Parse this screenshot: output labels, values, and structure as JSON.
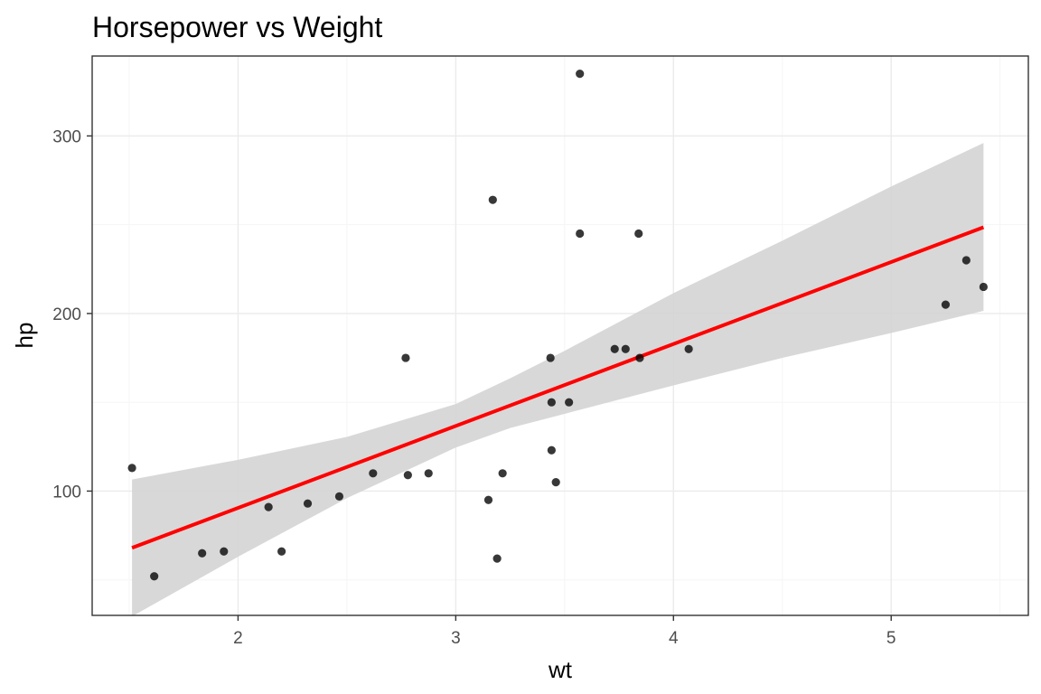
{
  "chart_data": {
    "type": "scatter",
    "title": "Horsepower vs Weight",
    "xlabel": "wt",
    "ylabel": "hp",
    "xlim": [
      1.33,
      5.63
    ],
    "ylim": [
      30,
      345
    ],
    "x_ticks": [
      2,
      3,
      4,
      5
    ],
    "y_ticks": [
      100,
      200,
      300
    ],
    "grid": true,
    "legend": "none",
    "colors": {
      "points": "#000000",
      "fit_line": "#ff0000",
      "confidence_band": "#d4d4d4",
      "panel_border": "#333333",
      "grid": "#ebebeb"
    },
    "points": [
      {
        "x": 1.513,
        "y": 113
      },
      {
        "x": 1.615,
        "y": 52
      },
      {
        "x": 1.835,
        "y": 65
      },
      {
        "x": 1.935,
        "y": 66
      },
      {
        "x": 2.14,
        "y": 91
      },
      {
        "x": 2.2,
        "y": 66
      },
      {
        "x": 2.32,
        "y": 93
      },
      {
        "x": 2.465,
        "y": 97
      },
      {
        "x": 2.62,
        "y": 110
      },
      {
        "x": 2.77,
        "y": 175
      },
      {
        "x": 2.78,
        "y": 109
      },
      {
        "x": 2.875,
        "y": 110
      },
      {
        "x": 3.15,
        "y": 95
      },
      {
        "x": 3.17,
        "y": 264
      },
      {
        "x": 3.19,
        "y": 62
      },
      {
        "x": 3.215,
        "y": 110
      },
      {
        "x": 3.435,
        "y": 175
      },
      {
        "x": 3.44,
        "y": 123
      },
      {
        "x": 3.44,
        "y": 150
      },
      {
        "x": 3.46,
        "y": 105
      },
      {
        "x": 3.52,
        "y": 150
      },
      {
        "x": 3.57,
        "y": 245
      },
      {
        "x": 3.57,
        "y": 335
      },
      {
        "x": 3.73,
        "y": 180
      },
      {
        "x": 3.78,
        "y": 180
      },
      {
        "x": 3.84,
        "y": 245
      },
      {
        "x": 3.845,
        "y": 175
      },
      {
        "x": 4.07,
        "y": 180
      },
      {
        "x": 5.25,
        "y": 205
      },
      {
        "x": 5.345,
        "y": 230
      },
      {
        "x": 5.424,
        "y": 215
      }
    ],
    "fit": {
      "method": "linear",
      "intercept": -1.8209,
      "slope": 46.1601,
      "x_range": [
        1.513,
        5.424
      ]
    },
    "confidence_band": [
      {
        "x": 1.513,
        "lower": 29.4,
        "upper": 106.5
      },
      {
        "x": 2.0,
        "lower": 63.0,
        "upper": 117.6
      },
      {
        "x": 2.5,
        "lower": 96.0,
        "upper": 130.5
      },
      {
        "x": 3.0,
        "lower": 124.5,
        "upper": 149.0
      },
      {
        "x": 3.25,
        "lower": 135.5,
        "upper": 163.5
      },
      {
        "x": 3.5,
        "lower": 143.5,
        "upper": 179.0
      },
      {
        "x": 4.0,
        "lower": 159.5,
        "upper": 211.5
      },
      {
        "x": 4.5,
        "lower": 175.0,
        "upper": 241.0
      },
      {
        "x": 5.0,
        "lower": 189.0,
        "upper": 271.5
      },
      {
        "x": 5.424,
        "lower": 201.5,
        "upper": 296.0
      }
    ]
  }
}
